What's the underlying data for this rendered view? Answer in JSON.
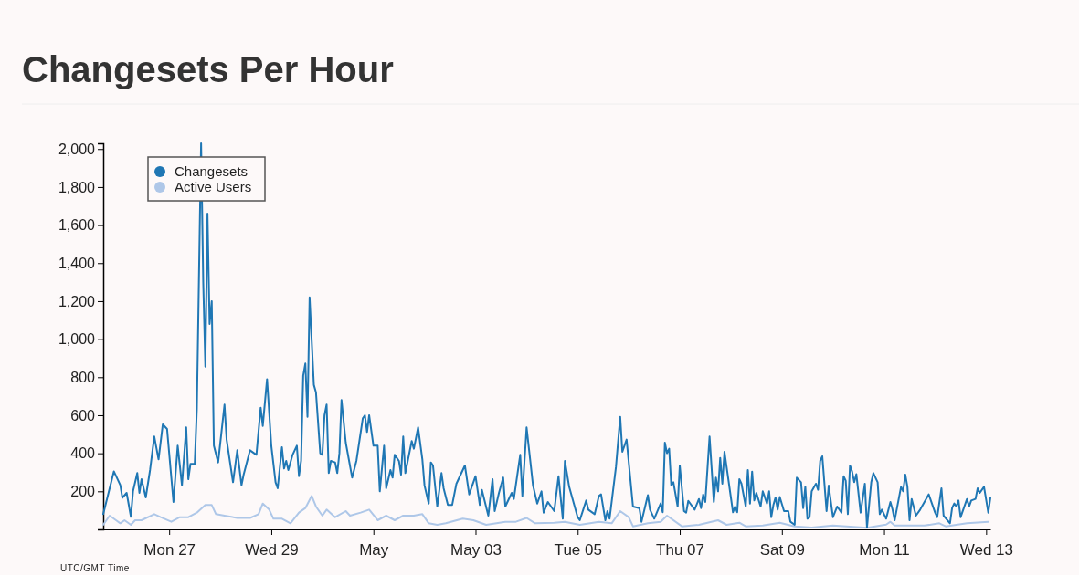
{
  "chart_data": {
    "type": "line",
    "title": "Changesets Per Hour",
    "xlabel": "UTC/GMT Time",
    "xlim": [
      "--04-25T17:00",
      "--05-13T02:00"
    ],
    "xticks": [
      {
        "value": "--04-27",
        "label": "Mon 27"
      },
      {
        "value": "--04-29",
        "label": "Wed 29"
      },
      {
        "value": "--05-01",
        "label": "May"
      },
      {
        "value": "--05-03",
        "label": "May 03"
      },
      {
        "value": "--05-05",
        "label": "Tue 05"
      },
      {
        "value": "--05-07",
        "label": "Thu 07"
      },
      {
        "value": "--05-09",
        "label": "Sat 09"
      },
      {
        "value": "--05-11",
        "label": "Mon 11"
      },
      {
        "value": "--05-13",
        "label": "Wed 13"
      }
    ],
    "ylim": [
      0,
      2030
    ],
    "yticks": [
      {
        "value": 0,
        "label": null
      },
      {
        "value": 200,
        "label": "200"
      },
      {
        "value": 400,
        "label": "400"
      },
      {
        "value": 600,
        "label": "600"
      },
      {
        "value": 800,
        "label": "800"
      },
      {
        "value": 1000,
        "label": "1,000"
      },
      {
        "value": 1200,
        "label": "1,200"
      },
      {
        "value": 1400,
        "label": "1,400"
      },
      {
        "value": 1600,
        "label": "1,600"
      },
      {
        "value": 1800,
        "label": "1,800"
      },
      {
        "value": 2000,
        "label": "2,000"
      }
    ],
    "grid": false,
    "legend": "top left",
    "marker": "none",
    "line_style": "solid",
    "series": [
      {
        "name": "Changesets",
        "color": "#1f77b4",
        "x": [
          "--04-25T17:00",
          "--04-25T22:00",
          "--04-26T01:00",
          "--04-26T02:00",
          "--04-26T04:00",
          "--04-26T06:00",
          "--04-26T07:00",
          "--04-26T09:00",
          "--04-26T10:00",
          "--04-26T11:00",
          "--04-26T13:00",
          "--04-26T15:00",
          "--04-26T17:00",
          "--04-26T19:00",
          "--04-26T21:00",
          "--04-26T23:00",
          "--04-27T02:00",
          "--04-27T04:00",
          "--04-27T06:00",
          "--04-27T08:00",
          "--04-27T09:00",
          "--04-27T10:00",
          "--04-27T12:00",
          "--04-27T13:00",
          "--04-27T15:00",
          "--04-27T16:00",
          "--04-27T17:00",
          "--04-27T18:00",
          "--04-27T19:00",
          "--04-27T20:00",
          "--04-27T21:00",
          "--04-27T23:00",
          "--04-28T02:00",
          "--04-28T03:00",
          "--04-28T06:00",
          "--04-28T08:00",
          "--04-28T10:00",
          "--04-28T11:00",
          "--04-28T14:00",
          "--04-28T17:00",
          "--04-28T19:00",
          "--04-28T20:00",
          "--04-28T22:00",
          "--04-29T00:00",
          "--04-29T02:00",
          "--04-29T03:00",
          "--04-29T05:00",
          "--04-29T06:00",
          "--04-29T07:00",
          "--04-29T08:00",
          "--04-29T10:00",
          "--04-29T12:00",
          "--04-29T13:00",
          "--04-29T14:00",
          "--04-29T15:00",
          "--04-29T16:00",
          "--04-29T17:00",
          "--04-29T18:00",
          "--04-29T20:00",
          "--04-29T21:00",
          "--04-29T23:00",
          "--04-30T00:00",
          "--04-30T01:00",
          "--04-30T02:00",
          "--04-30T03:00",
          "--04-30T04:00",
          "--04-30T06:00",
          "--04-30T07:00",
          "--04-30T08:00",
          "--04-30T09:00",
          "--04-30T11:00",
          "--04-30T14:00",
          "--04-30T16:00",
          "--04-30T19:00",
          "--04-30T20:00",
          "--04-30T21:00",
          "--04-30T22:00",
          "--05-01T00:00",
          "--05-01T02:00",
          "--05-01T03:00",
          "--05-01T05:00",
          "--05-01T06:00",
          "--05-01T08:00",
          "--05-01T09:00",
          "--05-01T10:00",
          "--05-01T12:00",
          "--05-01T13:00",
          "--05-01T14:00",
          "--05-01T15:00",
          "--05-01T18:00",
          "--05-01T19:00",
          "--05-01T21:00",
          "--05-01T23:00",
          "--05-02T00:00",
          "--05-02T02:00",
          "--05-02T03:00",
          "--05-02T04:00",
          "--05-02T06:00",
          "--05-02T08:00",
          "--05-02T09:00",
          "--05-02T11:00",
          "--05-02T13:00",
          "--05-02T15:00",
          "--05-02T18:00",
          "--05-02T19:00",
          "--05-02T21:00",
          "--05-03T00:00",
          "--05-03T02:00",
          "--05-03T03:00",
          "--05-03T06:00",
          "--05-03T08:00",
          "--05-03T09:00",
          "--05-03T11:00",
          "--05-03T13:00",
          "--05-03T14:00",
          "--05-03T17:00",
          "--05-03T18:00",
          "--05-03T21:00",
          "--05-03T22:00",
          "--05-04T00:00",
          "--05-04T03:00",
          "--05-04T05:00",
          "--05-04T07:00",
          "--05-04T08:00",
          "--05-04T10:00",
          "--05-04T13:00",
          "--05-04T15:00",
          "--05-04T17:00",
          "--05-04T18:00",
          "--05-04T20:00",
          "--05-05T00:00",
          "--05-05T01:00",
          "--05-05T04:00",
          "--05-05T05:00",
          "--05-05T08:00",
          "--05-05T10:00",
          "--05-05T11:00",
          "--05-05T13:00",
          "--05-05T14:00",
          "--05-05T15:00",
          "--05-05T18:00",
          "--05-05T20:00",
          "--05-05T21:00",
          "--05-05T23:00",
          "--05-06T02:00",
          "--05-06T05:00",
          "--05-06T06:00",
          "--05-06T09:00",
          "--05-06T10:00",
          "--05-06T12:00",
          "--05-06T15:00",
          "--05-06T16:00",
          "--05-06T17:00",
          "--05-06T18:00",
          "--05-06T19:00",
          "--05-06T20:00",
          "--05-06T21:00",
          "--05-06T23:00",
          "--05-07T00:00",
          "--05-07T02:00",
          "--05-07T03:00",
          "--05-07T04:00",
          "--05-07T07:00",
          "--05-07T09:00",
          "--05-07T10:00",
          "--05-07T11:00",
          "--05-07T12:00",
          "--05-07T14:00",
          "--05-07T16:00",
          "--05-07T17:00",
          "--05-07T18:00",
          "--05-07T19:00",
          "--05-07T20:00",
          "--05-07T21:00",
          "--05-08T01:00",
          "--05-08T02:00",
          "--05-08T03:00",
          "--05-08T04:00",
          "--05-08T05:00",
          "--05-08T07:00",
          "--05-08T08:00",
          "--05-08T09:00",
          "--05-08T10:00",
          "--05-08T11:00",
          "--05-08T12:00",
          "--05-08T14:00",
          "--05-08T15:00",
          "--05-08T17:00",
          "--05-08T18:00",
          "--05-08T19:00",
          "--05-08T20:00",
          "--05-08T21:00",
          "--05-08T22:00",
          "--05-08T23:00",
          "--05-09T01:00",
          "--05-09T03:00",
          "--05-09T04:00",
          "--05-09T06:00",
          "--05-09T07:00",
          "--05-09T09:00",
          "--05-09T10:00",
          "--05-09T11:00",
          "--05-09T12:00",
          "--05-09T13:00",
          "--05-09T14:00",
          "--05-09T16:00",
          "--05-09T17:00",
          "--05-09T18:00",
          "--05-09T19:00",
          "--05-09T21:00",
          "--05-09T22:00",
          "--05-10T00:00",
          "--05-10T02:00",
          "--05-10T04:00",
          "--05-10T05:00",
          "--05-10T06:00",
          "--05-10T07:00",
          "--05-10T08:00",
          "--05-10T09:00",
          "--05-10T10:00",
          "--05-10T11:00",
          "--05-10T13:00",
          "--05-10T15:00",
          "--05-10T16:00",
          "--05-10T18:00",
          "--05-10T19:00",
          "--05-10T21:00",
          "--05-10T22:00",
          "--05-10T23:00",
          "--05-11T01:00",
          "--05-11T03:00",
          "--05-11T04:00",
          "--05-11T05:00",
          "--05-11T08:00",
          "--05-11T09:00",
          "--05-11T10:00",
          "--05-11T11:00",
          "--05-11T12:00",
          "--05-11T13:00",
          "--05-11T15:00",
          "--05-11T17:00",
          "--05-11T19:00",
          "--05-11T21:00",
          "--05-12T00:00",
          "--05-12T01:00",
          "--05-12T03:00",
          "--05-12T04:00",
          "--05-12T07:00",
          "--05-12T08:00",
          "--05-12T09:00",
          "--05-12T10:00",
          "--05-12T11:00",
          "--05-12T12:00",
          "--05-12T15:00",
          "--05-12T16:00",
          "--05-12T17:00",
          "--05-12T19:00",
          "--05-12T20:00",
          "--05-12T21:00",
          "--05-12T23:00",
          "--05-13T01:00",
          "--05-13T02:00"
        ],
        "values": [
          80,
          305,
          233,
          166,
          192,
          66,
          200,
          296,
          192,
          264,
          168,
          312,
          488,
          368,
          552,
          528,
          144,
          440,
          232,
          536,
          264,
          344,
          344,
          632,
          2030,
          1300,
          856,
          1660,
          1080,
          1200,
          440,
          352,
          656,
          472,
          248,
          416,
          232,
          288,
          416,
          392,
          640,
          544,
          790,
          440,
          248,
          216,
          432,
          320,
          360,
          312,
          392,
          440,
          280,
          360,
          808,
          872,
          592,
          1220,
          760,
          720,
          400,
          392,
          600,
          656,
          296,
          360,
          352,
          296,
          400,
          680,
          456,
          272,
          360,
          584,
          600,
          512,
          600,
          440,
          440,
          200,
          440,
          216,
          312,
          272,
          392,
          360,
          288,
          488,
          296,
          464,
          424,
          536,
          368,
          232,
          136,
          352,
          336,
          120,
          296,
          216,
          128,
          128,
          240,
          312,
          336,
          184,
          280,
          128,
          208,
          72,
          264,
          96,
          192,
          272,
          120,
          192,
          160,
          392,
          176,
          536,
          232,
          136,
          200,
          88,
          144,
          96,
          280,
          56,
          360,
          224,
          64,
          48,
          152,
          104,
          80,
          176,
          184,
          48,
          96,
          56,
          328,
          592,
          408,
          472,
          120,
          112,
          40,
          180,
          104,
          56,
          136,
          90,
          456,
          400,
          424,
          232,
          248,
          120,
          336,
          96,
          88,
          150,
          104,
          160,
          112,
          184,
          144,
          488,
          144,
          272,
          200,
          376,
          240,
          408,
          90,
          120,
          90,
          264,
          240,
          120,
          312,
          136,
          304,
          152,
          192,
          120,
          200,
          136,
          200,
          64,
          128,
          168,
          104,
          170,
          96,
          96,
          40,
          24,
          272,
          248,
          112,
          224,
          56,
          64,
          200,
          240,
          208,
          360,
          384,
          96,
          230,
          64,
          120,
          88,
          280,
          256,
          80,
          336,
          304,
          248,
          290,
          88,
          240,
          10,
          248,
          296,
          248,
          80,
          104,
          56,
          144,
          104,
          48,
          224,
          200,
          288,
          224,
          48,
          160,
          72,
          104,
          144,
          184,
          88,
          64,
          216,
          72,
          32,
          112,
          136,
          120,
          152,
          64,
          160,
          120,
          152,
          160,
          216,
          192,
          224,
          88,
          165
        ]
      },
      {
        "name": "Active Users",
        "color": "#aec7e8",
        "x": [
          "--04-25T17:00",
          "--04-25T20:00",
          "--04-25T23:00",
          "--04-26T01:00",
          "--04-26T03:00",
          "--04-26T06:00",
          "--04-26T08:00",
          "--04-26T11:00",
          "--04-26T17:00",
          "--04-26T20:00",
          "--04-27T01:00",
          "--04-27T05:00",
          "--04-27T09:00",
          "--04-27T13:00",
          "--04-27T17:00",
          "--04-27T20:00",
          "--04-27T22:00",
          "--04-28T02:00",
          "--04-28T08:00",
          "--04-28T14:00",
          "--04-28T18:00",
          "--04-28T20:00",
          "--04-28T23:00",
          "--04-29T01:00",
          "--04-29T05:00",
          "--04-29T09:00",
          "--04-29T13:00",
          "--04-29T16:00",
          "--04-29T19:00",
          "--04-29T21:00",
          "--04-30T00:00",
          "--04-30T02:00",
          "--04-30T06:00",
          "--04-30T11:00",
          "--04-30T13:00",
          "--04-30T18:00",
          "--04-30T22:00",
          "--05-01T02:00",
          "--05-01T06:00",
          "--05-01T10:00",
          "--05-01T14:00",
          "--05-01T19:00",
          "--05-01T23:00",
          "--05-02T02:00",
          "--05-02T06:00",
          "--05-02T10:00",
          "--05-02T18:00",
          "--05-02T23:00",
          "--05-03T05:00",
          "--05-03T14:00",
          "--05-03T19:00",
          "--05-04T00:00",
          "--05-04T04:00",
          "--05-04T13:00",
          "--05-04T18:00",
          "--05-05T01:00",
          "--05-05T10:00",
          "--05-05T16:00",
          "--05-05T20:00",
          "--05-06T00:00",
          "--05-06T02:00",
          "--05-06T09:00",
          "--05-06T15:00",
          "--05-06T18:00",
          "--05-07T01:00",
          "--05-07T09:00",
          "--05-07T18:00",
          "--05-07T22:00",
          "--05-08T04:00",
          "--05-08T07:00",
          "--05-08T15:00",
          "--05-08T23:00",
          "--05-09T06:00",
          "--05-09T14:00",
          "--05-10T00:00",
          "--05-10T16:00",
          "--05-11T01:00",
          "--05-11T03:00",
          "--05-11T05:00",
          "--05-11T19:00",
          "--05-12T02:00",
          "--05-12T05:00",
          "--05-12T15:00",
          "--05-13T01:00"
        ],
        "values": [
          24,
          72,
          48,
          32,
          48,
          24,
          48,
          48,
          80,
          64,
          40,
          64,
          64,
          88,
          128,
          128,
          80,
          72,
          60,
          60,
          80,
          136,
          104,
          56,
          56,
          32,
          88,
          112,
          176,
          120,
          72,
          104,
          64,
          96,
          72,
          88,
          104,
          48,
          72,
          48,
          72,
          72,
          80,
          32,
          24,
          32,
          56,
          48,
          24,
          40,
          40,
          60,
          32,
          35,
          40,
          24,
          40,
          32,
          96,
          64,
          16,
          32,
          40,
          72,
          16,
          24,
          48,
          24,
          35,
          16,
          20,
          35,
          16,
          10,
          20,
          8,
          25,
          40,
          20,
          20,
          32,
          16,
          32,
          40
        ]
      }
    ]
  }
}
